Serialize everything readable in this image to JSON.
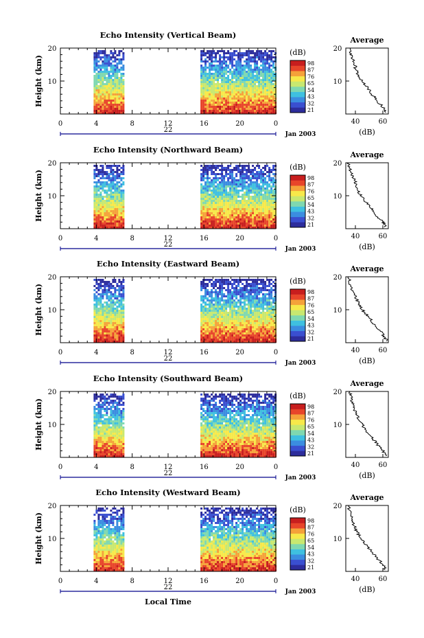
{
  "figure": {
    "colorbar_unit": "(dB)",
    "colorbar_ticks": [
      "98",
      "87",
      "76",
      "65",
      "54",
      "43",
      "32",
      "21"
    ],
    "colorbar_colors": [
      "#2d2d9c",
      "#3a4fd0",
      "#3b8de0",
      "#3fc0e0",
      "#7fd8b0",
      "#c8e870",
      "#f7e94a",
      "#f5a23a",
      "#e8452a",
      "#c81e1e"
    ],
    "x_ticks": [
      "0",
      "4",
      "8",
      "12",
      "16",
      "20",
      "0"
    ],
    "day_label": "22",
    "month_label": "Jan 2003",
    "xlabel": "Local Time",
    "ylabel": "Height (km)",
    "y_ticks": [
      "20",
      "10"
    ],
    "avg_title": "Average",
    "avg_xlabel": "(dB)"
  },
  "chart_data": [
    {
      "type": "heatmap",
      "title": "Echo Intensity (Vertical Beam)",
      "xlabel": "",
      "ylabel": "Height (km)",
      "xlim": [
        0,
        24
      ],
      "ylim": [
        0,
        20
      ],
      "data_intervals_hours": [
        [
          3.7,
          7.1
        ],
        [
          15.6,
          24
        ]
      ],
      "colorbar": {
        "unit": "dB",
        "range": [
          21,
          98
        ]
      },
      "avg_profile": {
        "title": "Average",
        "xlabel": "(dB)",
        "xticks": [
          "40",
          "60"
        ],
        "xlim": [
          33,
          64
        ],
        "height_km": [
          0.5,
          2,
          4,
          6,
          8,
          10,
          12,
          14,
          16,
          18,
          20
        ],
        "db": [
          62,
          60,
          56,
          52,
          49,
          45,
          42,
          40,
          39,
          37,
          36
        ]
      }
    },
    {
      "type": "heatmap",
      "title": "Echo Intensity (Northward Beam)",
      "xlabel": "",
      "ylabel": "Height (km)",
      "xlim": [
        0,
        24
      ],
      "ylim": [
        0,
        20
      ],
      "data_intervals_hours": [
        [
          3.7,
          7.1
        ],
        [
          15.6,
          24
        ]
      ],
      "colorbar": {
        "unit": "dB",
        "range": [
          21,
          98
        ]
      },
      "avg_profile": {
        "title": "Average",
        "xlabel": "(dB)",
        "xticks": [
          "40",
          "60"
        ],
        "xlim": [
          33,
          64
        ],
        "height_km": [
          0.5,
          2,
          4,
          6,
          8,
          10,
          12,
          14,
          16,
          18,
          20
        ],
        "db": [
          62,
          60,
          55,
          52,
          48,
          44,
          41,
          40,
          38,
          36,
          35
        ]
      }
    },
    {
      "type": "heatmap",
      "title": "Echo Intensity (Eastward Beam)",
      "xlabel": "",
      "ylabel": "Height (km)",
      "xlim": [
        0,
        24
      ],
      "ylim": [
        0,
        20
      ],
      "data_intervals_hours": [
        [
          3.7,
          7.1
        ],
        [
          15.6,
          24
        ]
      ],
      "colorbar": {
        "unit": "dB",
        "range": [
          21,
          98
        ]
      },
      "avg_profile": {
        "title": "Average",
        "xlabel": "(dB)",
        "xticks": [
          "40",
          "60"
        ],
        "xlim": [
          33,
          64
        ],
        "height_km": [
          0.5,
          2,
          4,
          6,
          8,
          10,
          12,
          14,
          16,
          18,
          20
        ],
        "db": [
          63,
          61,
          57,
          53,
          49,
          45,
          42,
          40,
          38,
          36,
          35
        ]
      }
    },
    {
      "type": "heatmap",
      "title": "Echo Intensity (Southward Beam)",
      "xlabel": "",
      "ylabel": "Height (km)",
      "xlim": [
        0,
        24
      ],
      "ylim": [
        0,
        20
      ],
      "data_intervals_hours": [
        [
          3.7,
          7.1
        ],
        [
          15.6,
          24
        ]
      ],
      "colorbar": {
        "unit": "dB",
        "range": [
          21,
          98
        ]
      },
      "avg_profile": {
        "title": "Average",
        "xlabel": "(dB)",
        "xticks": [
          "40",
          "60"
        ],
        "xlim": [
          33,
          64
        ],
        "height_km": [
          0.5,
          2,
          4,
          6,
          8,
          10,
          12,
          14,
          16,
          18,
          20
        ],
        "db": [
          62,
          60,
          56,
          52,
          48,
          45,
          42,
          40,
          38,
          37,
          36
        ]
      }
    },
    {
      "type": "heatmap",
      "title": "Echo Intensity (Westward Beam)",
      "xlabel": "Local Time",
      "ylabel": "Height (km)",
      "xlim": [
        0,
        24
      ],
      "ylim": [
        0,
        20
      ],
      "data_intervals_hours": [
        [
          3.7,
          7.1
        ],
        [
          15.6,
          24
        ]
      ],
      "colorbar": {
        "unit": "dB",
        "range": [
          21,
          98
        ]
      },
      "avg_profile": {
        "title": "Average",
        "xlabel": "(dB)",
        "xticks": [
          "40",
          "60"
        ],
        "xlim": [
          33,
          64
        ],
        "height_km": [
          0.5,
          2,
          4,
          6,
          8,
          10,
          12,
          14,
          16,
          18,
          20
        ],
        "db": [
          62,
          60,
          56,
          52,
          48,
          44,
          41,
          39,
          38,
          36,
          35
        ]
      }
    }
  ]
}
